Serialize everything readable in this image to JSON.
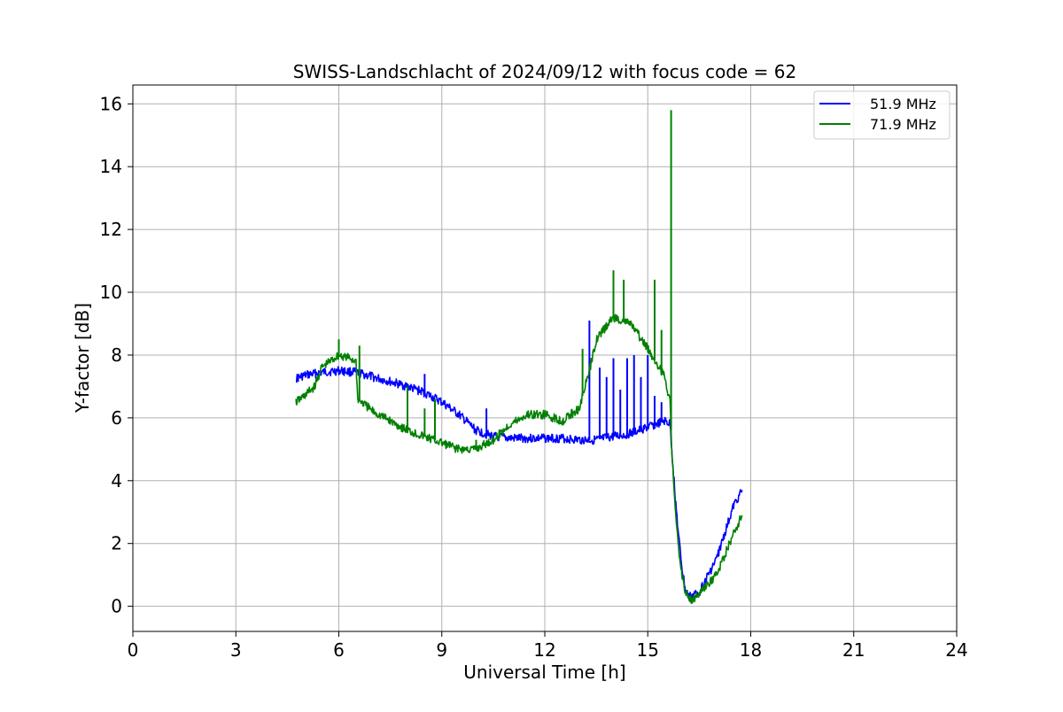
{
  "chart_data": {
    "type": "line",
    "title": "SWISS-Landschlacht of 2024/09/12 with focus code = 62",
    "xlabel": "Universal Time [h]",
    "ylabel": "Y-factor [dB]",
    "xlim": [
      0,
      24
    ],
    "ylim": [
      -0.8,
      16.6
    ],
    "xticks": [
      0,
      3,
      6,
      9,
      12,
      15,
      18,
      21,
      24
    ],
    "yticks": [
      0,
      2,
      4,
      6,
      8,
      10,
      12,
      14,
      16
    ],
    "grid": true,
    "legend_position": "top-right",
    "series": [
      {
        "name": "51.9 MHz",
        "color": "#0000ff",
        "points": [
          [
            4.75,
            7.25
          ],
          [
            5.0,
            7.35
          ],
          [
            5.5,
            7.45
          ],
          [
            6.0,
            7.5
          ],
          [
            6.5,
            7.45
          ],
          [
            7.0,
            7.3
          ],
          [
            7.5,
            7.15
          ],
          [
            8.0,
            7.0
          ],
          [
            8.5,
            6.8
          ],
          [
            9.0,
            6.5
          ],
          [
            9.5,
            6.1
          ],
          [
            10.0,
            5.6
          ],
          [
            10.5,
            5.4
          ],
          [
            11.0,
            5.35
          ],
          [
            11.5,
            5.35
          ],
          [
            12.0,
            5.35
          ],
          [
            12.5,
            5.35
          ],
          [
            13.0,
            5.3
          ],
          [
            13.5,
            5.3
          ],
          [
            14.0,
            5.4
          ],
          [
            14.5,
            5.5
          ],
          [
            15.0,
            5.7
          ],
          [
            15.5,
            5.9
          ],
          [
            15.65,
            5.8
          ],
          [
            15.7,
            5.0
          ],
          [
            15.8,
            3.5
          ],
          [
            15.9,
            2.2
          ],
          [
            16.0,
            1.2
          ],
          [
            16.1,
            0.5
          ],
          [
            16.2,
            0.3
          ],
          [
            16.5,
            0.45
          ],
          [
            17.0,
            1.5
          ],
          [
            17.5,
            3.2
          ],
          [
            17.75,
            3.7
          ]
        ],
        "spikes": [
          [
            8.5,
            7.4
          ],
          [
            10.3,
            6.3
          ],
          [
            13.3,
            9.1
          ],
          [
            13.6,
            7.6
          ],
          [
            13.8,
            7.3
          ],
          [
            14.0,
            7.9
          ],
          [
            14.2,
            6.9
          ],
          [
            14.4,
            7.9
          ],
          [
            14.6,
            8.0
          ],
          [
            14.8,
            7.3
          ],
          [
            15.0,
            8.0
          ],
          [
            15.2,
            6.7
          ],
          [
            15.4,
            6.5
          ]
        ]
      },
      {
        "name": "71.9 MHz",
        "color": "#008000",
        "points": [
          [
            4.75,
            6.5
          ],
          [
            5.0,
            6.7
          ],
          [
            5.3,
            7.0
          ],
          [
            5.5,
            7.6
          ],
          [
            6.0,
            8.0
          ],
          [
            6.3,
            7.9
          ],
          [
            6.5,
            7.8
          ],
          [
            6.55,
            6.6
          ],
          [
            7.0,
            6.2
          ],
          [
            7.5,
            5.9
          ],
          [
            8.0,
            5.6
          ],
          [
            8.5,
            5.4
          ],
          [
            9.0,
            5.2
          ],
          [
            9.5,
            5.0
          ],
          [
            10.0,
            5.0
          ],
          [
            10.5,
            5.3
          ],
          [
            11.0,
            5.8
          ],
          [
            11.5,
            6.1
          ],
          [
            12.0,
            6.1
          ],
          [
            12.5,
            5.9
          ],
          [
            13.0,
            6.3
          ],
          [
            13.3,
            7.5
          ],
          [
            13.5,
            8.5
          ],
          [
            14.0,
            9.2
          ],
          [
            14.5,
            9.0
          ],
          [
            15.0,
            8.2
          ],
          [
            15.5,
            7.3
          ],
          [
            15.65,
            6.5
          ],
          [
            15.7,
            5.0
          ],
          [
            15.8,
            3.0
          ],
          [
            15.9,
            1.8
          ],
          [
            16.0,
            1.0
          ],
          [
            16.1,
            0.4
          ],
          [
            16.3,
            0.2
          ],
          [
            16.5,
            0.4
          ],
          [
            17.0,
            1.0
          ],
          [
            17.5,
            2.3
          ],
          [
            17.75,
            2.9
          ]
        ],
        "spikes": [
          [
            6.0,
            8.5
          ],
          [
            6.6,
            8.3
          ],
          [
            8.0,
            7.0
          ],
          [
            8.5,
            6.3
          ],
          [
            8.8,
            6.6
          ],
          [
            10.0,
            5.3
          ],
          [
            13.1,
            8.2
          ],
          [
            14.0,
            10.7
          ],
          [
            14.3,
            10.4
          ],
          [
            15.2,
            10.4
          ],
          [
            15.4,
            8.8
          ],
          [
            15.68,
            15.8
          ]
        ]
      }
    ]
  }
}
